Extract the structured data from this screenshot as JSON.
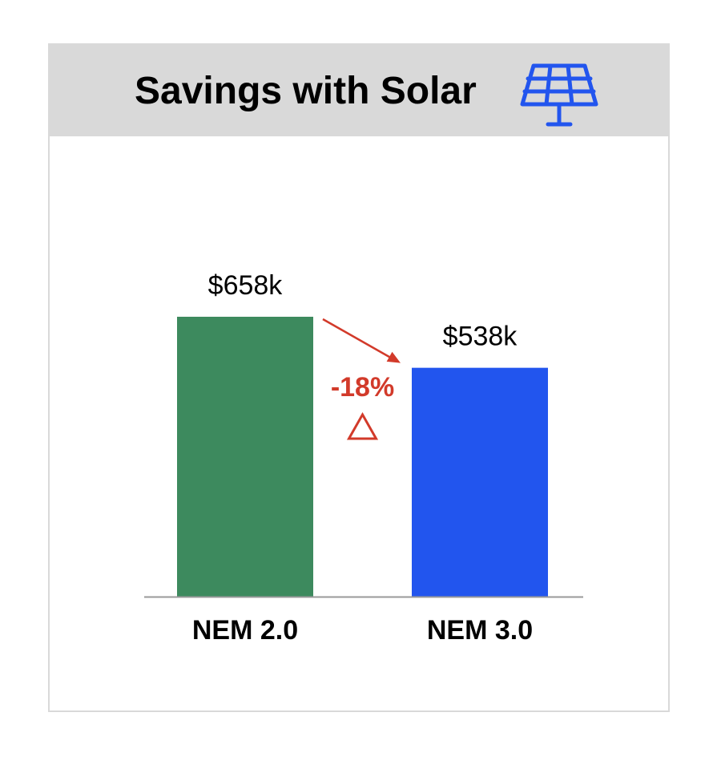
{
  "header": {
    "title": "Savings with Solar",
    "icon": "solar-panel-icon"
  },
  "colors": {
    "header_bg": "#d9d9d9",
    "icon": "#2255ee",
    "change": "#d23a2a",
    "axis": "#999999"
  },
  "change_annotation": {
    "text": "-18%",
    "icon": "triangle-delta-icon"
  },
  "chart_data": {
    "type": "bar",
    "title": "Savings with Solar",
    "categories": [
      "NEM 2.0",
      "NEM 3.0"
    ],
    "values": [
      658,
      538
    ],
    "value_labels": [
      "$658k",
      "$538k"
    ],
    "unit": "$k",
    "colors": [
      "#3d8a5e",
      "#2255ee"
    ],
    "xlabel": "",
    "ylabel": "",
    "ylim": [
      0,
      658
    ],
    "grid": false,
    "legend": "none",
    "annotations": [
      "-18%"
    ]
  }
}
